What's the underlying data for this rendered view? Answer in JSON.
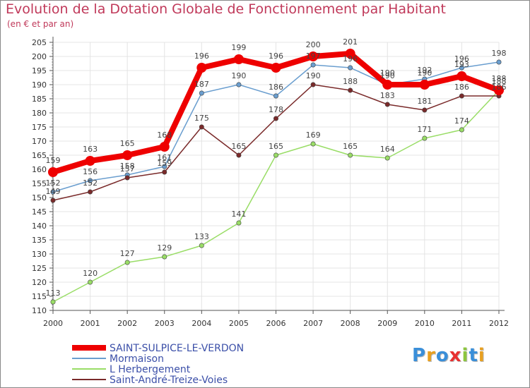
{
  "chart_data": {
    "type": "line",
    "title": "Evolution de la Dotation Globale de Fonctionnement par Habitant",
    "subtitle": "(en € et par an)",
    "xlabel": "",
    "ylabel": "",
    "ylim": [
      110,
      205
    ],
    "y_ticks": [
      110,
      115,
      120,
      125,
      130,
      135,
      140,
      145,
      150,
      155,
      160,
      165,
      170,
      175,
      180,
      185,
      190,
      195,
      200,
      205
    ],
    "grid": true,
    "legend_position": "bottom-left",
    "x": [
      "2000",
      "2001",
      "2002",
      "2003",
      "2004",
      "2005",
      "2006",
      "2007",
      "2008",
      "2009",
      "2010",
      "2011",
      "2012"
    ],
    "series": [
      {
        "name": "SAINT-SULPICE-LE-VERDON",
        "color": "#ee0000",
        "values": [
          159,
          163,
          165,
          168,
          196,
          199,
          196,
          200,
          201,
          190,
          190,
          193,
          188
        ]
      },
      {
        "name": "Mormaison",
        "color": "#6a9ecf",
        "values": [
          152,
          156,
          158,
          161,
          187,
          190,
          186,
          197,
          196,
          190,
          192,
          196,
          198
        ]
      },
      {
        "name": "L  Herbergement",
        "color": "#99dd66",
        "values": [
          113,
          120,
          127,
          129,
          133,
          141,
          165,
          169,
          165,
          164,
          171,
          174,
          188
        ]
      },
      {
        "name": "Saint-André-Treize-Voies",
        "color": "#7a2a2a",
        "values": [
          149,
          152,
          157,
          159,
          175,
          165,
          178,
          190,
          188,
          183,
          181,
          186,
          186
        ]
      }
    ]
  },
  "branding": {
    "logo_letters": [
      "P",
      "r",
      "o",
      "x",
      "i",
      "t",
      "i"
    ],
    "logo_colors": [
      "#3a8fd9",
      "#e8a020",
      "#3a8fd9",
      "#e83030",
      "#8cc63f",
      "#3a8fd9",
      "#e8a020"
    ]
  }
}
